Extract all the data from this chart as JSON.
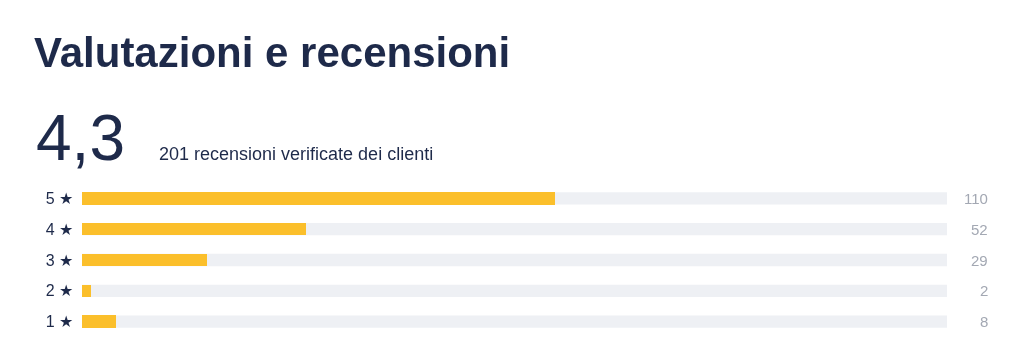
{
  "chart_data": {
    "type": "bar",
    "orientation": "horizontal",
    "title": "Valutazioni e recensioni",
    "subtitle": "201 recensioni verificate dei clienti",
    "annotations": [
      "4,3"
    ],
    "categories": [
      "5 ★",
      "4 ★",
      "3 ★",
      "2 ★",
      "1 ★"
    ],
    "values": [
      110,
      52,
      29,
      2,
      8
    ],
    "color": "#fbbf2b",
    "xlim": [
      0,
      201
    ],
    "data_labels": true,
    "tick_labels": "y",
    "grid": false
  }
}
